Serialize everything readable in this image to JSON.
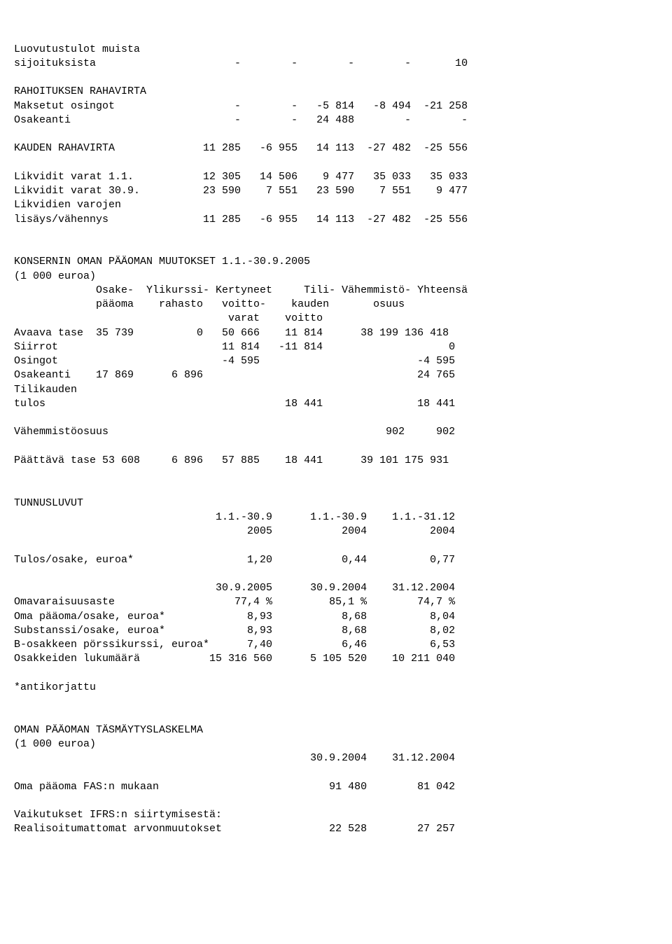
{
  "doc": {
    "line01": "Luovutustulot muista",
    "line02": "sijoituksista                      -        -        -        -       10",
    "line03": "",
    "line04": "RAHOITUKSEN RAHAVIRTA",
    "line05": "Maksetut osingot                   -        -   -5 814   -8 494  -21 258",
    "line06": "Osakeanti                          -        -   24 488        -        -",
    "line07": "",
    "line08": "KAUDEN RAHAVIRTA              11 285   -6 955   14 113  -27 482  -25 556",
    "line09": "",
    "line10": "Likvidit varat 1.1.           12 305   14 506    9 477   35 033   35 033",
    "line11": "Likvidit varat 30.9.          23 590    7 551   23 590    7 551    9 477",
    "line12": "Likvidien varojen",
    "line13": "lisäys/vähennys               11 285   -6 955   14 113  -27 482  -25 556",
    "line14": "",
    "line15": "",
    "line16": "KONSERNIN OMAN PÄÄOMAN MUUTOKSET 1.1.-30.9.2005",
    "line17": "(1 000 euroa)",
    "line18": "             Osake-  Ylikurssi- Kertyneet     Tili- Vähemmistö- Yhteensä",
    "line19": "             pääoma    rahasto   voitto-    kauden       osuus",
    "line20": "                                  varat    voitto",
    "line21": "Avaava tase  35 739          0   50 666    11 814      38 199 136 418",
    "line22": "Siirrot                          11 814   -11 814                    0",
    "line23": "Osingot                          -4 595                         -4 595",
    "line24": "Osakeanti    17 869      6 896                                  24 765",
    "line25": "Tilikauden",
    "line26": "tulos                                      18 441               18 441",
    "line27": "",
    "line28": "Vähemmistöosuus                                            902     902",
    "line29": "",
    "line30": "Päättävä tase 53 608     6 896   57 885    18 441      39 101 175 931",
    "line31": "",
    "line32": "",
    "line33": "TUNNUSLUVUT",
    "line34": "                                1.1.-30.9      1.1.-30.9    1.1.-31.12",
    "line35": "                                     2005           2004          2004",
    "line36": "",
    "line37": "Tulos/osake, euroa*                  1,20           0,44          0,77",
    "line38": "",
    "line39": "                                30.9.2005      30.9.2004    31.12.2004",
    "line40": "Omavaraisuusaste                   77,4 %         85,1 %        74,7 %",
    "line41": "Oma pääoma/osake, euroa*             8,93           8,68          8,04",
    "line42": "Substanssi/osake, euroa*             8,93           8,68          8,02",
    "line43": "B-osakkeen pörssikurssi, euroa*      7,40           6,46          6,53",
    "line44": "Osakkeiden lukumäärä           15 316 560      5 105 520    10 211 040",
    "line45": "",
    "line46": "*antikorjattu",
    "line47": "",
    "line48": "",
    "line49": "OMAN PÄÄOMAN TÄSMÄYTYSLASKELMA",
    "line50": "(1 000 euroa)",
    "line51": "                                               30.9.2004    31.12.2004",
    "line52": "",
    "line53": "Oma pääoma FAS:n mukaan                           91 480        81 042",
    "line54": "",
    "line55": "Vaikutukset IFRS:n siirtymisestä:",
    "line56": "Realisoitumattomat arvonmuutokset                 22 528        27 257"
  }
}
